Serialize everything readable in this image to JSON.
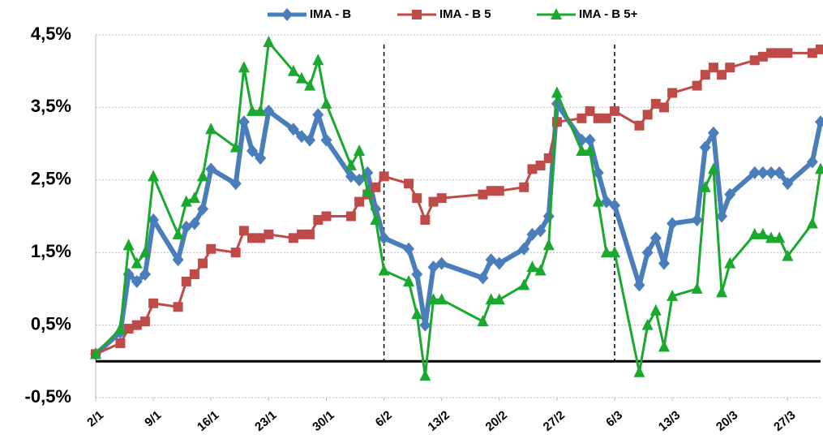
{
  "chart_data": {
    "type": "line",
    "x": [
      "2/1",
      "5/1",
      "6/1",
      "7/1",
      "8/1",
      "9/1",
      "12/1",
      "13/1",
      "14/1",
      "15/1",
      "16/1",
      "19/1",
      "20/1",
      "21/1",
      "22/1",
      "23/1",
      "26/1",
      "27/1",
      "28/1",
      "29/1",
      "30/1",
      "2/2",
      "3/2",
      "4/2",
      "5/2",
      "6/2",
      "9/2",
      "10/2",
      "11/2",
      "12/2",
      "13/2",
      "18/2",
      "19/2",
      "20/2",
      "23/2",
      "24/2",
      "25/2",
      "26/2",
      "27/2",
      "2/3",
      "3/3",
      "4/3",
      "5/3",
      "6/3",
      "9/3",
      "10/3",
      "11/3",
      "12/3",
      "13/3",
      "16/3",
      "17/3",
      "18/3",
      "19/3",
      "20/3",
      "23/3",
      "24/3",
      "25/3",
      "26/3",
      "27/3",
      "30/3",
      "31/3"
    ],
    "series": [
      {
        "name": "IMA - B",
        "color": "#4a7ebb",
        "marker": "diamond",
        "values": [
          0.1,
          0.4,
          1.2,
          1.1,
          1.2,
          1.95,
          1.4,
          1.85,
          1.9,
          2.1,
          2.65,
          2.45,
          3.3,
          2.9,
          2.8,
          3.45,
          3.2,
          3.1,
          3.05,
          3.4,
          3.05,
          2.55,
          2.5,
          2.6,
          2.1,
          1.7,
          1.55,
          1.2,
          0.5,
          1.3,
          1.35,
          1.15,
          1.4,
          1.35,
          1.55,
          1.75,
          1.8,
          2.0,
          3.55,
          3.05,
          3.05,
          2.6,
          2.2,
          2.15,
          1.05,
          1.5,
          1.7,
          1.35,
          1.9,
          1.95,
          2.95,
          3.15,
          2.0,
          2.3,
          2.6,
          2.6,
          2.6,
          2.6,
          2.45,
          2.75,
          3.3
        ]
      },
      {
        "name": "IMA - B 5",
        "color": "#be4b48",
        "marker": "square",
        "values": [
          0.1,
          0.25,
          0.45,
          0.5,
          0.55,
          0.8,
          0.75,
          1.1,
          1.2,
          1.35,
          1.55,
          1.5,
          1.8,
          1.7,
          1.7,
          1.75,
          1.7,
          1.75,
          1.75,
          1.95,
          2.0,
          2.0,
          2.2,
          2.3,
          2.4,
          2.55,
          2.45,
          2.25,
          1.95,
          2.2,
          2.25,
          2.3,
          2.35,
          2.35,
          2.4,
          2.65,
          2.7,
          2.8,
          3.3,
          3.35,
          3.45,
          3.35,
          3.35,
          3.45,
          3.25,
          3.4,
          3.55,
          3.5,
          3.7,
          3.8,
          3.95,
          4.05,
          3.95,
          4.05,
          4.15,
          4.2,
          4.25,
          4.25,
          4.25,
          4.25,
          4.3
        ]
      },
      {
        "name": "IMA - B 5+",
        "color": "#1aa82e",
        "marker": "triangle",
        "values": [
          0.1,
          0.45,
          1.6,
          1.35,
          1.5,
          2.55,
          1.75,
          2.2,
          2.25,
          2.55,
          3.2,
          2.95,
          4.05,
          3.45,
          3.45,
          4.4,
          4.0,
          3.9,
          3.8,
          4.15,
          3.55,
          2.7,
          2.9,
          2.35,
          1.95,
          1.25,
          1.1,
          0.65,
          -0.2,
          0.85,
          0.85,
          0.55,
          0.85,
          0.85,
          1.05,
          1.3,
          1.25,
          1.6,
          3.7,
          2.9,
          2.9,
          2.2,
          1.5,
          1.5,
          -0.15,
          0.5,
          0.7,
          0.2,
          0.9,
          1.0,
          2.4,
          2.65,
          0.95,
          1.35,
          1.75,
          1.75,
          1.7,
          1.7,
          1.45,
          1.9,
          2.65
        ]
      }
    ],
    "xlim": [
      "2/1",
      "31/3"
    ],
    "xticks": [
      "2/1",
      "9/1",
      "16/1",
      "23/1",
      "30/1",
      "6/2",
      "13/2",
      "20/2",
      "27/2",
      "6/3",
      "13/3",
      "20/3",
      "27/3"
    ],
    "vlines": [
      "6/2",
      "6/3"
    ],
    "ylim": [
      -0.5,
      4.5
    ],
    "yticks": [
      {
        "value": -0.5,
        "label": "-0,5%"
      },
      {
        "value": 0.5,
        "label": "0,5%"
      },
      {
        "value": 1.5,
        "label": "1,5%"
      },
      {
        "value": 2.5,
        "label": "2,5%"
      },
      {
        "value": 3.5,
        "label": "3,5%"
      },
      {
        "value": 4.5,
        "label": "4,5%"
      }
    ],
    "grid": true,
    "legend": "top"
  }
}
